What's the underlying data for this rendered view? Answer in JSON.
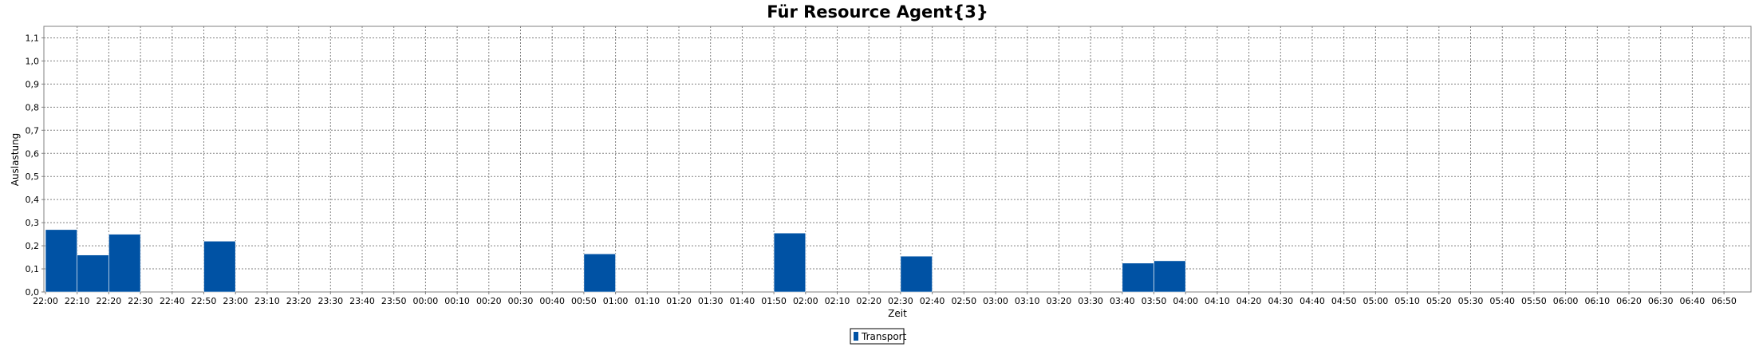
{
  "chart_data": {
    "type": "bar",
    "title": "Für Resource Agent{3}",
    "xlabel": "Zeit",
    "ylabel": "Auslastung",
    "ylim": [
      0,
      1.15
    ],
    "yticks": [
      "0,0",
      "0,1",
      "0,2",
      "0,3",
      "0,4",
      "0,5",
      "0,6",
      "0,7",
      "0,8",
      "0,9",
      "1,0",
      "1,1"
    ],
    "categories": [
      "22:00",
      "22:10",
      "22:20",
      "22:30",
      "22:40",
      "22:50",
      "23:00",
      "23:10",
      "23:20",
      "23:30",
      "23:40",
      "23:50",
      "00:00",
      "00:10",
      "00:20",
      "00:30",
      "00:40",
      "00:50",
      "01:00",
      "01:10",
      "01:20",
      "01:30",
      "01:40",
      "01:50",
      "02:00",
      "02:10",
      "02:20",
      "02:30",
      "02:40",
      "02:50",
      "03:00",
      "03:10",
      "03:20",
      "03:30",
      "03:40",
      "03:50",
      "04:00",
      "04:10",
      "04:20",
      "04:30",
      "04:40",
      "04:50",
      "05:00",
      "05:10",
      "05:20",
      "05:30",
      "05:40",
      "05:50",
      "06:00",
      "06:10",
      "06:20",
      "06:30",
      "06:40",
      "06:50"
    ],
    "series": [
      {
        "name": "Transport",
        "color": "#0052a4",
        "values": [
          0.27,
          0.16,
          0.25,
          0,
          0,
          0.22,
          0,
          0,
          0,
          0,
          0,
          0,
          0,
          0,
          0,
          0,
          0,
          0.165,
          0,
          0,
          0,
          0,
          0,
          0.255,
          0,
          0,
          0,
          0.155,
          0,
          0,
          0,
          0,
          0,
          0,
          0.125,
          0.135,
          0,
          0,
          0,
          0,
          0,
          0,
          0,
          0,
          0,
          0,
          0,
          0,
          0,
          0,
          0,
          0,
          0,
          0
        ]
      }
    ],
    "grid": true,
    "legend_position": "bottom-center"
  },
  "colors": {
    "bar": "#0052a4",
    "grid": "#808080",
    "plot_border": "#808080"
  }
}
